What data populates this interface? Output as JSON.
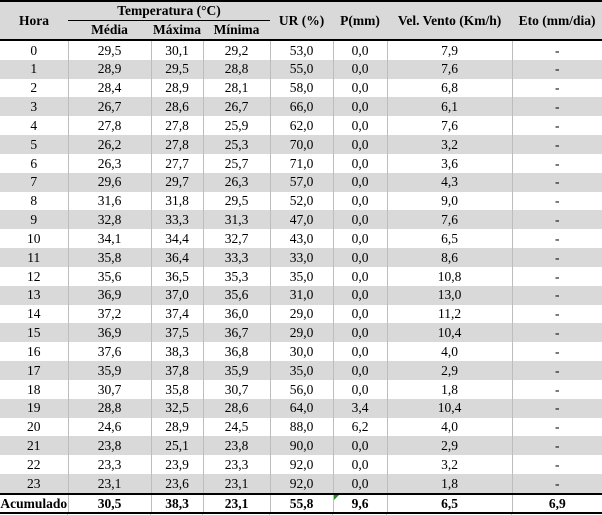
{
  "table": {
    "header": {
      "hora": "Hora",
      "temperatura_group": "Temperatura (°C)",
      "temp_sub": [
        "Média",
        "Máxima",
        "Mínima"
      ],
      "ur": "UR (%)",
      "p": "P(mm)",
      "vel_vento": "Vel. Vento (Km/h)",
      "eto": "Eto (mm/dia)"
    },
    "rows": [
      [
        "0",
        "29,5",
        "30,1",
        "29,2",
        "53,0",
        "0,0",
        "7,9",
        "-"
      ],
      [
        "1",
        "28,9",
        "29,5",
        "28,8",
        "55,0",
        "0,0",
        "7,6",
        "-"
      ],
      [
        "2",
        "28,4",
        "28,9",
        "28,1",
        "58,0",
        "0,0",
        "6,8",
        "-"
      ],
      [
        "3",
        "26,7",
        "28,6",
        "26,7",
        "66,0",
        "0,0",
        "6,1",
        "-"
      ],
      [
        "4",
        "27,8",
        "27,8",
        "25,9",
        "62,0",
        "0,0",
        "7,6",
        "-"
      ],
      [
        "5",
        "26,2",
        "27,8",
        "25,3",
        "70,0",
        "0,0",
        "3,2",
        "-"
      ],
      [
        "6",
        "26,3",
        "27,7",
        "25,7",
        "71,0",
        "0,0",
        "3,6",
        "-"
      ],
      [
        "7",
        "29,6",
        "29,7",
        "26,3",
        "57,0",
        "0,0",
        "4,3",
        "-"
      ],
      [
        "8",
        "31,6",
        "31,8",
        "29,5",
        "52,0",
        "0,0",
        "9,0",
        "-"
      ],
      [
        "9",
        "32,8",
        "33,3",
        "31,3",
        "47,0",
        "0,0",
        "7,6",
        "-"
      ],
      [
        "10",
        "34,1",
        "34,4",
        "32,7",
        "43,0",
        "0,0",
        "6,5",
        "-"
      ],
      [
        "11",
        "35,8",
        "36,4",
        "33,3",
        "33,0",
        "0,0",
        "8,6",
        "-"
      ],
      [
        "12",
        "35,6",
        "36,5",
        "35,3",
        "35,0",
        "0,0",
        "10,8",
        "-"
      ],
      [
        "13",
        "36,9",
        "37,0",
        "35,6",
        "31,0",
        "0,0",
        "13,0",
        "-"
      ],
      [
        "14",
        "37,2",
        "37,4",
        "36,0",
        "29,0",
        "0,0",
        "11,2",
        "-"
      ],
      [
        "15",
        "36,9",
        "37,5",
        "36,7",
        "29,0",
        "0,0",
        "10,4",
        "-"
      ],
      [
        "16",
        "37,6",
        "38,3",
        "36,8",
        "30,0",
        "0,0",
        "4,0",
        "-"
      ],
      [
        "17",
        "35,9",
        "37,8",
        "35,9",
        "35,0",
        "0,0",
        "2,9",
        "-"
      ],
      [
        "18",
        "30,7",
        "35,8",
        "30,7",
        "56,0",
        "0,0",
        "1,8",
        "-"
      ],
      [
        "19",
        "28,8",
        "32,5",
        "28,6",
        "64,0",
        "3,4",
        "10,4",
        "-"
      ],
      [
        "20",
        "24,6",
        "28,9",
        "24,5",
        "88,0",
        "6,2",
        "4,0",
        "-"
      ],
      [
        "21",
        "23,8",
        "25,1",
        "23,8",
        "90,0",
        "0,0",
        "2,9",
        "-"
      ],
      [
        "22",
        "23,3",
        "23,9",
        "23,3",
        "92,0",
        "0,0",
        "3,2",
        "-"
      ],
      [
        "23",
        "23,1",
        "23,6",
        "23,1",
        "92,0",
        "0,0",
        "1,8",
        "-"
      ]
    ],
    "footer": [
      "Acumulado",
      "30,5",
      "38,3",
      "23,1",
      "55,8",
      "9,6",
      "6,5",
      "6,9"
    ],
    "footer_flag_index": 5
  },
  "colors": {
    "header_bg": "#d9d9d9",
    "stripe_bg": "#d9d9d9",
    "grid_line": "#bdbdbd",
    "heavy_border": "#000000",
    "error_indicator_green": "#228B22"
  }
}
